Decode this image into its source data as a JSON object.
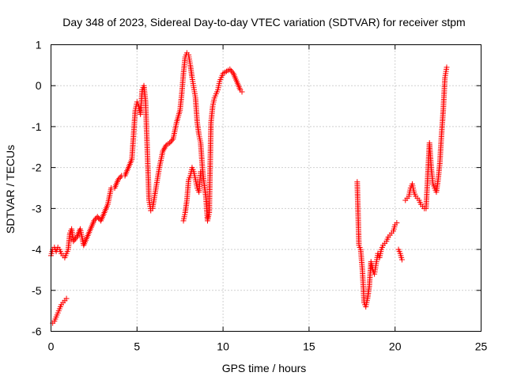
{
  "chart_data": {
    "type": "scatter",
    "title": "Day 348 of 2023, Sidereal Day-to-day VTEC variation (SDTVAR) for receiver stpm",
    "xlabel": "GPS time / hours",
    "ylabel": "SDTVAR / TECUs",
    "xlim": [
      0,
      25
    ],
    "ylim": [
      -6,
      1
    ],
    "xticks": [
      0,
      5,
      10,
      15,
      20,
      25
    ],
    "yticks": [
      -6,
      -5,
      -4,
      -3,
      -2,
      -1,
      0,
      1
    ],
    "xtick_labels": [
      "0",
      "5",
      "10",
      "15",
      "20",
      "25"
    ],
    "ytick_labels": [
      "-6",
      "-5",
      "-4",
      "-3",
      "-2",
      "-1",
      "0",
      "1"
    ],
    "grid": true,
    "marker": "plus",
    "series": [
      {
        "name": "SDTVAR",
        "color": "#ff0000",
        "segments": [
          {
            "x": [
              0.0,
              0.1,
              0.2,
              0.3,
              0.4,
              0.5,
              0.6,
              0.7,
              0.8,
              0.9,
              1.0,
              1.1,
              1.2,
              1.3,
              1.5,
              1.7,
              1.9,
              2.1,
              2.3,
              2.5,
              2.7,
              2.9,
              3.1,
              3.3,
              3.5,
              3.7,
              3.9,
              4.1,
              4.3,
              4.5,
              4.7,
              4.9,
              5.0,
              5.1,
              5.2,
              5.3,
              5.4,
              5.5,
              5.6,
              5.7,
              5.8,
              5.9,
              6.1,
              6.3,
              6.5,
              6.7,
              6.9,
              7.1,
              7.3,
              7.5,
              7.6,
              7.7,
              7.8,
              7.9,
              8.0,
              8.1,
              8.2,
              8.3,
              8.4,
              8.5,
              8.6,
              8.7,
              8.8,
              8.9,
              9.0,
              9.1,
              9.2,
              9.3,
              9.4,
              9.5,
              9.6,
              9.7,
              9.8,
              9.9,
              10.0,
              10.2,
              10.4,
              10.6,
              10.8,
              11.0,
              11.1
            ],
            "y": [
              -4.15,
              -4.0,
              -3.95,
              -4.05,
              -3.95,
              -4.0,
              -4.1,
              -4.15,
              -4.2,
              -4.1,
              -4.0,
              -3.6,
              -3.5,
              -3.8,
              -3.7,
              -3.5,
              -3.9,
              -3.7,
              -3.5,
              -3.3,
              -3.2,
              -3.3,
              -3.1,
              -2.9,
              -2.5,
              -2.5,
              -2.3,
              -2.2,
              -2.2,
              -2.0,
              -1.8,
              -0.6,
              -0.4,
              -0.5,
              -0.7,
              -0.1,
              0.0,
              -0.4,
              -1.6,
              -2.8,
              -3.05,
              -3.0,
              -2.5,
              -2.0,
              -1.6,
              -1.45,
              -1.4,
              -1.3,
              -0.9,
              -0.6,
              -0.2,
              0.3,
              0.7,
              0.8,
              0.75,
              0.5,
              0.2,
              -0.05,
              -0.3,
              -0.9,
              -1.2,
              -1.4,
              -2.0,
              -2.4,
              -2.7,
              -3.3,
              -3.1,
              -0.9,
              -0.5,
              -0.3,
              -0.2,
              -0.1,
              0.1,
              0.2,
              0.3,
              0.35,
              0.4,
              0.3,
              0.1,
              -0.1,
              -0.15
            ]
          },
          {
            "x": [
              0.1,
              0.2,
              0.3,
              0.4,
              0.5,
              0.6,
              0.7,
              0.8,
              0.9
            ],
            "y": [
              -5.8,
              -5.75,
              -5.65,
              -5.55,
              -5.45,
              -5.35,
              -5.3,
              -5.25,
              -5.2
            ]
          },
          {
            "x": [
              7.7,
              7.8,
              7.9,
              8.0,
              8.1,
              8.2,
              8.3,
              8.4,
              8.5,
              8.6,
              8.7
            ],
            "y": [
              -3.3,
              -3.1,
              -2.8,
              -2.3,
              -2.2,
              -2.0,
              -2.1,
              -2.3,
              -2.5,
              -2.6,
              -2.1
            ]
          },
          {
            "x": [
              17.8,
              17.9,
              18.0,
              18.1,
              18.2,
              18.3,
              18.4,
              18.5,
              18.6,
              18.7,
              18.8,
              18.9,
              19.0,
              19.1,
              19.2,
              19.3,
              19.4,
              19.5,
              19.6,
              19.7,
              19.8,
              19.9,
              20.0,
              20.1
            ],
            "y": [
              -2.35,
              -3.9,
              -4.0,
              -4.5,
              -5.3,
              -5.4,
              -5.2,
              -4.9,
              -4.3,
              -4.5,
              -4.6,
              -4.35,
              -4.1,
              -4.2,
              -4.0,
              -3.9,
              -3.85,
              -3.8,
              -3.7,
              -3.65,
              -3.6,
              -3.55,
              -3.4,
              -3.35
            ]
          },
          {
            "x": [
              20.2,
              20.3,
              20.4
            ],
            "y": [
              -4.0,
              -4.1,
              -4.25
            ]
          },
          {
            "x": [
              20.6,
              20.7,
              20.8,
              20.9,
              21.0,
              21.1,
              21.2,
              21.3,
              21.4,
              21.5,
              21.6,
              21.7,
              21.8,
              22.0,
              22.1,
              22.2,
              22.3,
              22.4,
              22.5,
              22.6,
              22.7,
              22.8,
              22.9,
              23.0
            ],
            "y": [
              -2.8,
              -2.75,
              -2.7,
              -2.5,
              -2.4,
              -2.6,
              -2.7,
              -2.75,
              -2.8,
              -2.9,
              -2.95,
              -3.0,
              -3.0,
              -1.4,
              -2.0,
              -2.4,
              -2.5,
              -2.6,
              -2.3,
              -1.9,
              -1.2,
              -0.6,
              0.2,
              0.45
            ]
          }
        ]
      }
    ]
  }
}
